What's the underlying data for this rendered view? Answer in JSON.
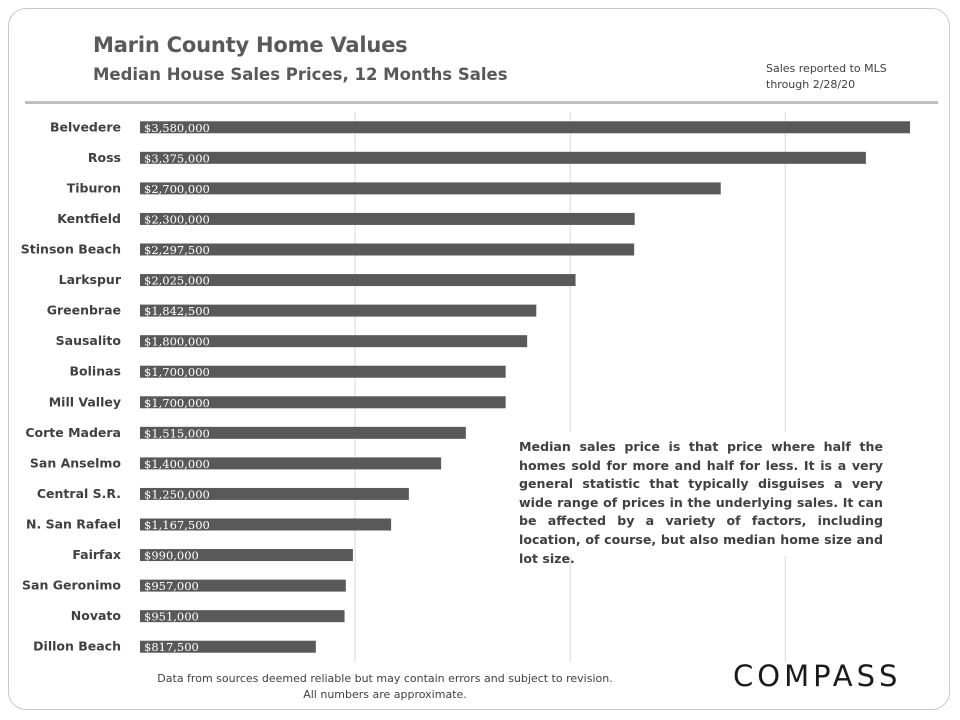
{
  "header": {
    "title": "Marin County Home Values",
    "subtitle": "Median House Sales Prices, 12 Months Sales",
    "note_line1": "Sales reported to MLS",
    "note_line2": "through 2/28/20"
  },
  "annotation": "Median sales price is that price where half the homes sold for more and half for less. It is a very general statistic that typically disguises a very wide range of prices in the underlying sales. It can be affected by a variety of factors, including location, of course, but also median home size and lot size.",
  "footer": {
    "line1": "Data from sources deemed reliable but  may contain errors and subject to revision.",
    "line2": "All numbers are approximate."
  },
  "logo": "COMPASS",
  "colors": {
    "bar": "#595959",
    "gridline": "#d9d9d9",
    "label": "#404040",
    "bar_label": "#ffffff"
  },
  "chart_data": {
    "type": "bar",
    "orientation": "horizontal",
    "categories": [
      "Belvedere",
      "Ross",
      "Tiburon",
      "Kentfield",
      "Stinson Beach",
      "Larkspur",
      "Greenbrae",
      "Sausalito",
      "Bolinas",
      "Mill Valley",
      "Corte Madera",
      "San Anselmo",
      "Central S.R.",
      "N. San Rafael",
      "Fairfax",
      "San Geronimo",
      "Novato",
      "Dillon Beach"
    ],
    "values": [
      3580000,
      3375000,
      2700000,
      2300000,
      2297500,
      2025000,
      1842500,
      1800000,
      1700000,
      1700000,
      1515000,
      1400000,
      1250000,
      1167500,
      990000,
      957000,
      951000,
      817500
    ],
    "value_labels": [
      "$3,580,000",
      "$3,375,000",
      "$2,700,000",
      "$2,300,000",
      "$2,297,500",
      "$2,025,000",
      "$1,842,500",
      "$1,800,000",
      "$1,700,000",
      "$1,700,000",
      "$1,515,000",
      "$1,400,000",
      "$1,250,000",
      "$1,167,500",
      "$990,000",
      "$957,000",
      "$951,000",
      "$817,500"
    ],
    "xlim": [
      0,
      3580000
    ],
    "gridlines": [
      1000000,
      2000000,
      3000000
    ],
    "grid": true,
    "legend": "none"
  }
}
